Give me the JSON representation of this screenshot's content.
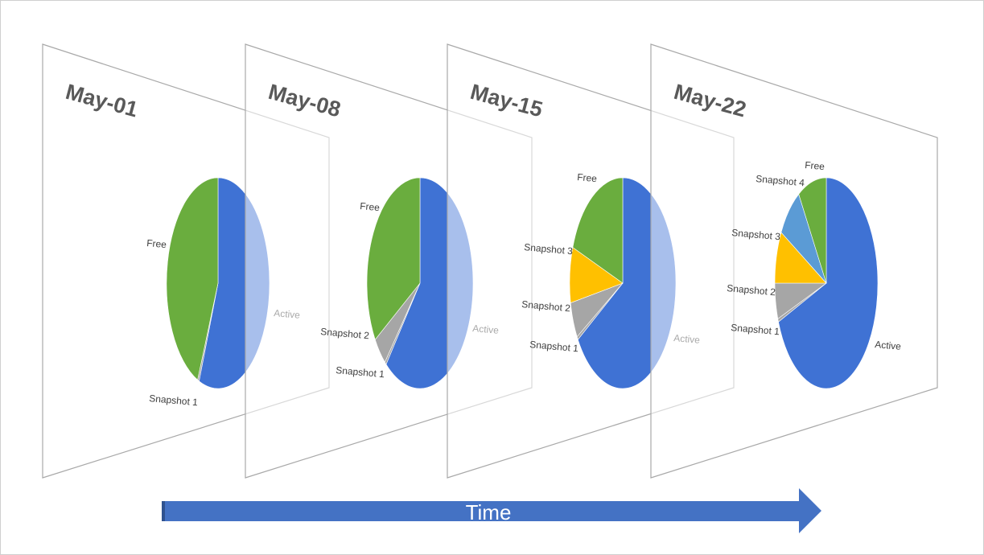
{
  "colors": {
    "Active": "#3f72d4",
    "Free": "#6aad3e",
    "Snapshot 1": "#a6a6a6",
    "Snapshot 2": "#a6a6a6",
    "Snapshot 3": "#ffc000",
    "Snapshot 4": "#5b9bd5",
    "arrow": "#4472c4",
    "plane_edge": "#a9a9a9"
  },
  "chart_data": [
    {
      "type": "pie",
      "title": "May-01",
      "slices": [
        {
          "label": "Active",
          "value": 56
        },
        {
          "label": "Snapshot 1",
          "value": 0.5
        },
        {
          "label": "Free",
          "value": 43.5
        }
      ]
    },
    {
      "type": "pie",
      "title": "May-08",
      "slices": [
        {
          "label": "Active",
          "value": 61
        },
        {
          "label": "Snapshot 1",
          "value": 0.5
        },
        {
          "label": "Snapshot 2",
          "value": 4.5
        },
        {
          "label": "Free",
          "value": 34
        }
      ]
    },
    {
      "type": "pie",
      "title": "May-15",
      "slices": [
        {
          "label": "Active",
          "value": 66
        },
        {
          "label": "Snapshot 1",
          "value": 0.5
        },
        {
          "label": "Snapshot 2",
          "value": 5.5
        },
        {
          "label": "Snapshot 3",
          "value": 8.5
        },
        {
          "label": "Free",
          "value": 19.5
        }
      ]
    },
    {
      "type": "pie",
      "title": "May-22",
      "slices": [
        {
          "label": "Active",
          "value": 69
        },
        {
          "label": "Snapshot 1",
          "value": 0.5
        },
        {
          "label": "Snapshot 2",
          "value": 5.5
        },
        {
          "label": "Snapshot 3",
          "value": 8
        },
        {
          "label": "Snapshot 4",
          "value": 8
        },
        {
          "label": "Free",
          "value": 9
        }
      ]
    }
  ],
  "timeline": {
    "label": "Time"
  }
}
